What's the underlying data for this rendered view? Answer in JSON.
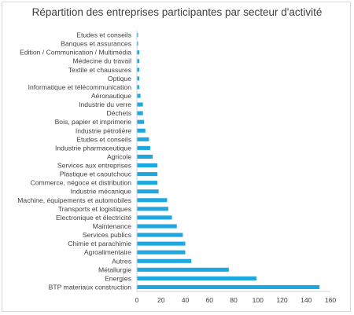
{
  "chart_data": {
    "type": "bar",
    "orientation": "horizontal",
    "title": "Répartition des entreprises participantes par secteur d'activité",
    "xlabel": "",
    "ylabel": "",
    "xlim": [
      0,
      160
    ],
    "xticks": [
      "0",
      "20",
      "40",
      "60",
      "80",
      "100",
      "120",
      "140",
      "160"
    ],
    "grid": false,
    "bar_color": "#1FA7E0",
    "categories": [
      "Etudes et conseils",
      "Banques et assurances",
      "Edition / Communication / Multimédia",
      "Médecine du travail",
      "Textile et chaussures",
      "Optique",
      "Informatique et télécommunication",
      "Aéronautique",
      "Industrie du verre",
      "Déchets",
      "Bois, papier et imprimerie",
      "Industrie pétrolière",
      "Etudes et conseils",
      "Industrie pharmaceutique",
      "Agricole",
      "Services aux entreprises",
      "Plastique et caoutchouc",
      "Commerce, négoce et distribution",
      "Industrie mécanique",
      "Machine, équipements et automobiles",
      "Transports et logistiques",
      "Electronique et électricité",
      "Maintenance",
      "Services publics",
      "Chimie et parachimie",
      "Agroalimentaire",
      "Autres",
      "Métallurgie",
      "Energies",
      "BTP materiaux construction"
    ],
    "values": [
      1,
      1,
      2,
      2,
      2,
      2,
      2,
      3,
      5,
      5,
      6,
      7,
      10,
      11,
      13,
      17,
      17,
      17,
      18,
      25,
      26,
      29,
      33,
      38,
      40,
      40,
      45,
      76,
      99,
      151
    ]
  }
}
